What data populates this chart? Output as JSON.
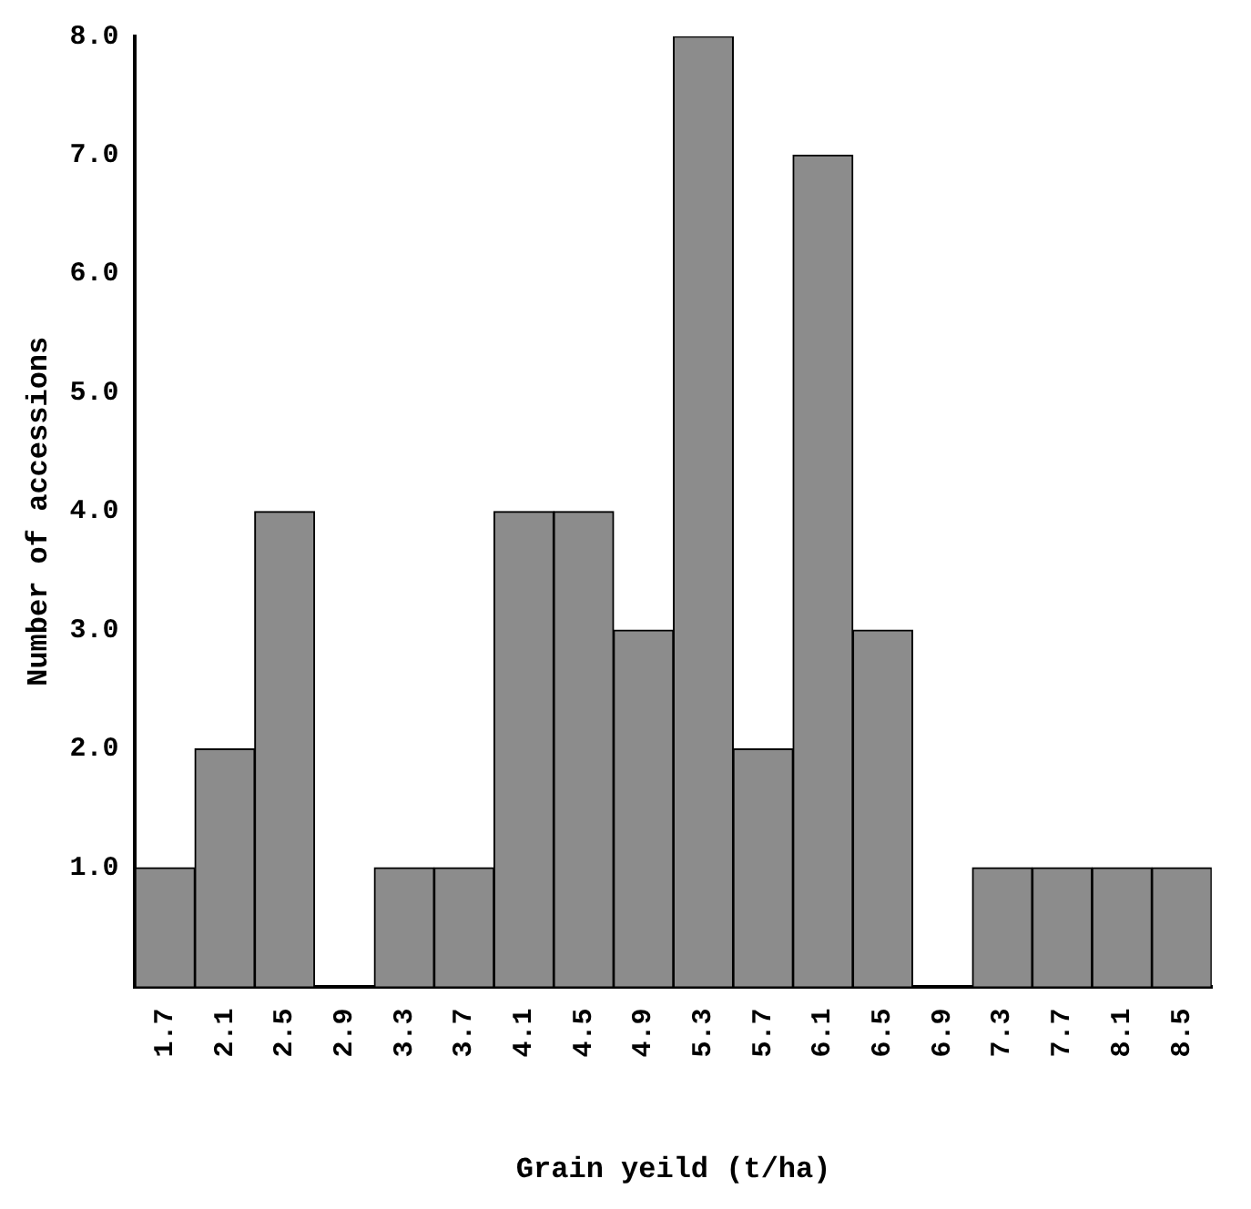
{
  "chart_data": {
    "type": "bar",
    "xlabel": "Grain yeild (t/ha)",
    "ylabel": "Number of accessions",
    "categories": [
      "1.7",
      "2.1",
      "2.5",
      "2.9",
      "3.3",
      "3.7",
      "4.1",
      "4.5",
      "4.9",
      "5.3",
      "5.7",
      "6.1",
      "6.5",
      "6.9",
      "7.3",
      "7.7",
      "8.1",
      "8.5"
    ],
    "values": [
      1,
      2,
      4,
      0,
      1,
      1,
      4,
      4,
      3,
      8,
      2,
      7,
      3,
      0,
      1,
      1,
      1,
      1
    ],
    "color": "#8c8c8c",
    "ylim": [
      0,
      8
    ],
    "yticks": [
      {
        "value": 1,
        "label": "1.0"
      },
      {
        "value": 2,
        "label": "2.0"
      },
      {
        "value": 3,
        "label": "3.0"
      },
      {
        "value": 4,
        "label": "4.0"
      },
      {
        "value": 5,
        "label": "5.0"
      },
      {
        "value": 6,
        "label": "6.0"
      },
      {
        "value": 7,
        "label": "7.0"
      },
      {
        "value": 8,
        "label": "8.0"
      }
    ],
    "grid": false,
    "legend": false
  }
}
